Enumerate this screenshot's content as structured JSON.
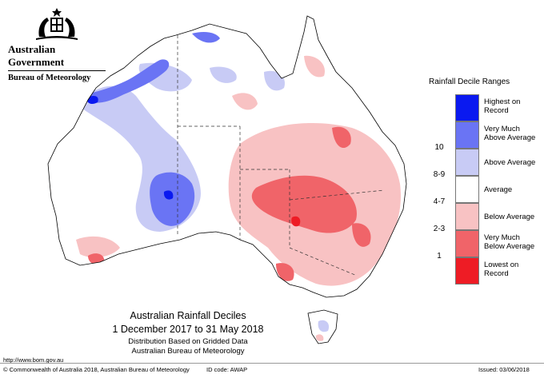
{
  "header": {
    "government": "Australian Government",
    "bureau": "Bureau of Meteorology"
  },
  "map": {
    "title": "Australian Rainfall Deciles",
    "period": "1 December 2017 to 31 May 2018",
    "method": "Distribution Based on Gridded Data",
    "source": "Australian Bureau of Meteorology"
  },
  "legend": {
    "title": "Rainfall Decile Ranges",
    "items": [
      {
        "code": "",
        "label": "Highest on Record",
        "color": "#0a19f0"
      },
      {
        "code": "10",
        "label": "Very Much Above Average",
        "color": "#6a74f4"
      },
      {
        "code": "8-9",
        "label": "Above Average",
        "color": "#c8cbf5"
      },
      {
        "code": "4-7",
        "label": "Average",
        "color": "#ffffff"
      },
      {
        "code": "2-3",
        "label": "Below Average",
        "color": "#f8c2c3"
      },
      {
        "code": "1",
        "label": "Very Much Below Average",
        "color": "#f06469"
      },
      {
        "code": "",
        "label": "Lowest on Record",
        "color": "#ee1c25"
      }
    ]
  },
  "footer": {
    "url": "http://www.bom.gov.au",
    "copyright": "© Commonwealth of Australia 2018, Australian Bureau of Meteorology",
    "id_code": "ID code: AWAP",
    "issued": "Issued: 03/06/2018"
  }
}
